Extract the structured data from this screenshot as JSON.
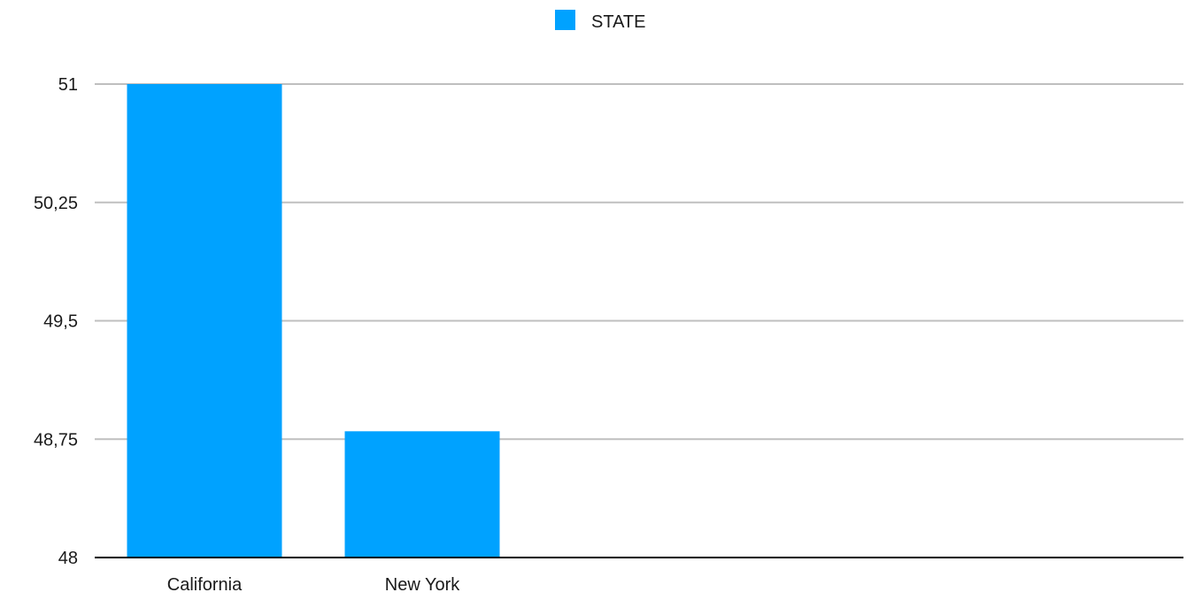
{
  "chart_data": {
    "type": "bar",
    "categories": [
      "California",
      "New York"
    ],
    "series": [
      {
        "name": "STATE",
        "values": [
          51,
          48.8
        ],
        "color": "#00a2ff"
      }
    ],
    "ylim": [
      48,
      51
    ],
    "yticks": [
      {
        "value": 48,
        "label": "48"
      },
      {
        "value": 48.75,
        "label": "48,75"
      },
      {
        "value": 49.5,
        "label": "49,5"
      },
      {
        "value": 50.25,
        "label": "50,25"
      },
      {
        "value": 51,
        "label": "51"
      }
    ],
    "grid": true,
    "legend_position": "top-center",
    "title": "",
    "xlabel": "",
    "ylabel": ""
  }
}
